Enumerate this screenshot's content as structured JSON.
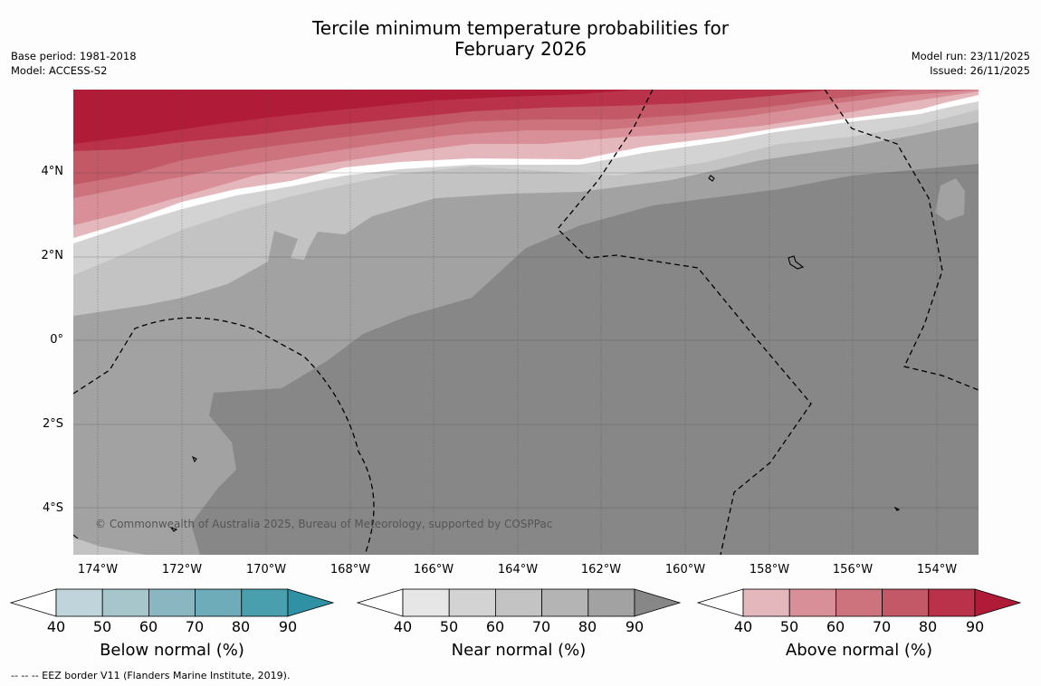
{
  "title": {
    "line1": "Tercile minimum temperature probabilities for",
    "line2": "February 2026"
  },
  "meta_left": {
    "base_period": "Base period: 1981-2018",
    "model": "Model: ACCESS-S2"
  },
  "meta_right": {
    "model_run": "Model run: 23/11/2025",
    "issued": "Issued: 26/11/2025"
  },
  "map": {
    "credit": "© Commonwealth of Australia 2025, Bureau of Meteorology, supported by COSPPac",
    "lat_labels": [
      "4°N",
      "2°N",
      "0°",
      "2°S",
      "4°S"
    ],
    "lon_labels": [
      "174°W",
      "172°W",
      "170°W",
      "168°W",
      "166°W",
      "164°W",
      "162°W",
      "160°W",
      "158°W",
      "156°W",
      "154°W"
    ]
  },
  "colorbars": [
    {
      "label": "Below normal (%)",
      "ticks": [
        "40",
        "50",
        "60",
        "70",
        "80",
        "90"
      ],
      "colors": [
        "#bfd5db",
        "#a6c6cc",
        "#8ab6c2",
        "#6facb9",
        "#4a9fae",
        "#2f91a3"
      ]
    },
    {
      "label": "Near normal (%)",
      "ticks": [
        "40",
        "50",
        "60",
        "70",
        "80",
        "90"
      ],
      "colors": [
        "#e6e6e6",
        "#d3d3d3",
        "#c3c3c3",
        "#b4b4b4",
        "#a2a2a2",
        "#878787"
      ]
    },
    {
      "label": "Above normal (%)",
      "ticks": [
        "40",
        "50",
        "60",
        "70",
        "80",
        "90"
      ],
      "colors": [
        "#e4b7bc",
        "#d98f98",
        "#cc737d",
        "#c35967",
        "#ba324a",
        "#b01c38"
      ]
    }
  ],
  "footnote": "--  --  -- EEZ border V11 (Flanders Marine Institute, 2019)."
}
